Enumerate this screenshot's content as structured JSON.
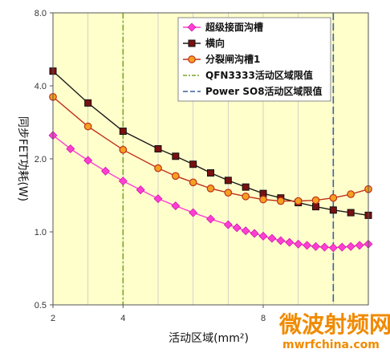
{
  "chart_data": {
    "type": "line",
    "xlabel": "活动区域(mm²)",
    "ylabel": "同步FET功耗(W)",
    "xlim": [
      2,
      11
    ],
    "ylim": [
      0.5,
      8.0
    ],
    "yscale": "log2",
    "x_ticks": [
      "2",
      "4",
      "8"
    ],
    "y_ticks": [
      "0.5",
      "1.0",
      "2.0",
      "4.0",
      "8.0"
    ],
    "grid": "vertical",
    "plot_background": "#ffffcc",
    "legend_position": "top-right",
    "series": [
      {
        "name": "超级接面沟槽",
        "color": "#ff3fd2",
        "marker": "diamond",
        "x": [
          2,
          2.5,
          3,
          3.5,
          4,
          4.5,
          5,
          5.5,
          6,
          6.5,
          7,
          7.25,
          7.5,
          7.75,
          8,
          8.25,
          8.5,
          8.75,
          9,
          9.25,
          9.5,
          9.75,
          10,
          10.25,
          10.5,
          10.75,
          11
        ],
        "values": [
          2.5,
          2.2,
          1.97,
          1.78,
          1.62,
          1.49,
          1.37,
          1.28,
          1.2,
          1.13,
          1.07,
          1.04,
          1.01,
          0.985,
          0.96,
          0.94,
          0.92,
          0.905,
          0.89,
          0.88,
          0.87,
          0.865,
          0.86,
          0.865,
          0.87,
          0.88,
          0.89
        ]
      },
      {
        "name": "横向",
        "color": "#1a1a1a",
        "marker": "square",
        "x": [
          2,
          3,
          4,
          5,
          5.5,
          6,
          6.5,
          7,
          7.5,
          8,
          8.5,
          9,
          9.5,
          10,
          10.5,
          11
        ],
        "values": [
          4.6,
          3.4,
          2.6,
          2.2,
          2.05,
          1.9,
          1.75,
          1.63,
          1.53,
          1.44,
          1.38,
          1.32,
          1.27,
          1.23,
          1.2,
          1.17
        ]
      },
      {
        "name": "分裂闸沟槽1",
        "color": "#c0301a",
        "marker": "circle",
        "x": [
          2,
          3,
          4,
          5,
          5.5,
          6,
          6.5,
          7,
          7.5,
          8,
          8.5,
          9,
          9.5,
          10,
          10.5,
          11
        ],
        "values": [
          3.6,
          2.72,
          2.18,
          1.83,
          1.7,
          1.6,
          1.51,
          1.45,
          1.4,
          1.36,
          1.34,
          1.34,
          1.35,
          1.38,
          1.43,
          1.5
        ]
      },
      {
        "name": "QFN3333活动区域限值",
        "color": "#7aa62a",
        "linestyle": "dash-dot",
        "vline_x": 4
      },
      {
        "name": "Power SO8活动区域限值",
        "color": "#3a5fa0",
        "linestyle": "dash",
        "vline_x": 10
      }
    ]
  },
  "watermark": {
    "text_cn": "微波射频网",
    "text_url": "mwrfchina.com"
  }
}
